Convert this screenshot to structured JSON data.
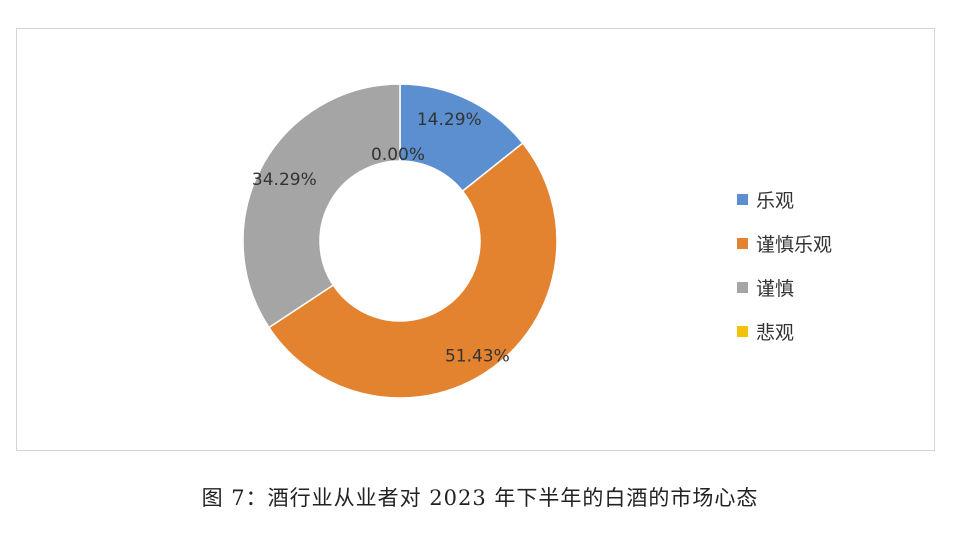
{
  "chart_data": {
    "type": "pie",
    "variant": "donut",
    "categories": [
      "乐观",
      "谨慎乐观",
      "谨慎",
      "悲观"
    ],
    "values": [
      14.29,
      51.43,
      34.29,
      0.0
    ],
    "value_labels": [
      "14.29%",
      "51.43%",
      "34.29%",
      "0.00%"
    ],
    "colors": [
      "#5b8fcf",
      "#e3822f",
      "#a5a5a5",
      "#f4c20d"
    ],
    "legend_position": "right",
    "title": ""
  },
  "caption": "图 7：酒行业从业者对 2023 年下半年的白酒的市场心态"
}
